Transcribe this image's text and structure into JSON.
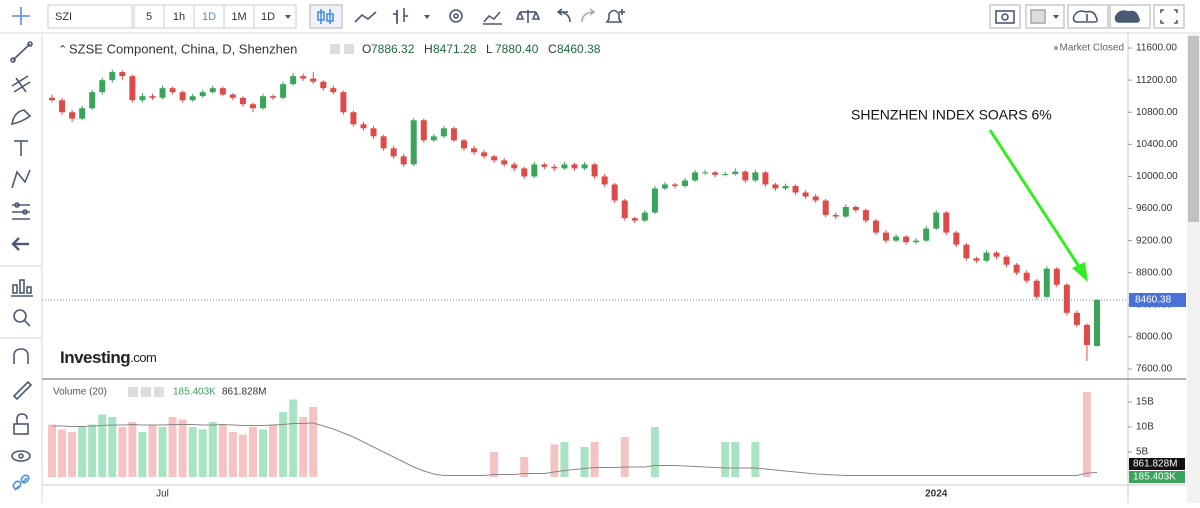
{
  "toolbar": {
    "symbol": "SZI",
    "intervals": [
      "5",
      "1h",
      "1D",
      "1M",
      "1D"
    ]
  },
  "chart_data": {
    "type": "candlestick",
    "title": "SZSE Component, China, D, Shenzhen",
    "ohlc_letters": [
      "O",
      "H",
      "L",
      "C"
    ],
    "header_values": [
      "7886.32",
      "8471.28",
      "7880.40",
      "8460.38"
    ],
    "status": "Market Closed",
    "logo": "Investing",
    "logo_suffix": ".com",
    "annotation": "SHENZHEN INDEX SOARS 6%",
    "up_color": "#3aa45c",
    "down_color": "#dd4b48",
    "ylim": [
      7488,
      11750
    ],
    "yticks": [
      {
        "value": 7600,
        "label": "7600.00"
      },
      {
        "value": 8000,
        "label": "8000.00"
      },
      {
        "value": 8400,
        "label": "8400.00"
      },
      {
        "value": 8800,
        "label": "8800.00"
      },
      {
        "value": 9200,
        "label": "9200.00"
      },
      {
        "value": 9600,
        "label": "9600.00"
      },
      {
        "value": 10000,
        "label": "10000.00"
      },
      {
        "value": 10400,
        "label": "10400.00"
      },
      {
        "value": 10800,
        "label": "10800.00"
      },
      {
        "value": 11200,
        "label": "11200.00"
      },
      {
        "value": 11600,
        "label": "11600.00"
      }
    ],
    "categories": [
      null,
      null,
      null,
      null,
      null,
      null,
      null,
      null,
      null,
      null,
      null,
      "Jul",
      null,
      null,
      null,
      null,
      null,
      null,
      null,
      null,
      null,
      null,
      null,
      null,
      null,
      null,
      null,
      null,
      null,
      null,
      null,
      null,
      null,
      null,
      null,
      null,
      null,
      null,
      null,
      null,
      null,
      null,
      null,
      null,
      null,
      null,
      null,
      null,
      null,
      null,
      null,
      null,
      null,
      null,
      null,
      null,
      null,
      null,
      null,
      null,
      null,
      null,
      null,
      null,
      null,
      null,
      null,
      null,
      null,
      null,
      null,
      null,
      null,
      null,
      null,
      null,
      null,
      null,
      null,
      null,
      null,
      null,
      null,
      null,
      null,
      null,
      null,
      null,
      "2024",
      null,
      null,
      null,
      null,
      null,
      null,
      null,
      null,
      null,
      null,
      null,
      null,
      null,
      null,
      null,
      null
    ],
    "candles": [
      [
        10980,
        11020,
        10920,
        10950
      ],
      [
        10950,
        10980,
        10770,
        10800
      ],
      [
        10800,
        10830,
        10680,
        10720
      ],
      [
        10720,
        10880,
        10700,
        10850
      ],
      [
        10850,
        11080,
        10830,
        11050
      ],
      [
        11050,
        11230,
        11020,
        11200
      ],
      [
        11200,
        11330,
        11170,
        11300
      ],
      [
        11300,
        11320,
        11200,
        11250
      ],
      [
        11250,
        11270,
        10920,
        10950
      ],
      [
        10950,
        11040,
        10920,
        11000
      ],
      [
        11000,
        11030,
        10950,
        10980
      ],
      [
        10980,
        11130,
        10960,
        11100
      ],
      [
        11100,
        11120,
        11020,
        11050
      ],
      [
        11050,
        11070,
        10920,
        10950
      ],
      [
        10950,
        11030,
        10930,
        11000
      ],
      [
        11000,
        11080,
        10980,
        11050
      ],
      [
        11050,
        11130,
        11030,
        11100
      ],
      [
        11100,
        11120,
        11000,
        11020
      ],
      [
        11020,
        11040,
        10950,
        10980
      ],
      [
        10980,
        11000,
        10870,
        10900
      ],
      [
        10900,
        10920,
        10800,
        10850
      ],
      [
        10850,
        11030,
        10830,
        11000
      ],
      [
        11000,
        11020,
        10950,
        10980
      ],
      [
        10980,
        11180,
        10960,
        11150
      ],
      [
        11150,
        11290,
        11130,
        11250
      ],
      [
        11250,
        11280,
        11190,
        11220
      ],
      [
        11220,
        11300,
        11150,
        11180
      ],
      [
        11180,
        11200,
        11070,
        11100
      ],
      [
        11100,
        11130,
        11020,
        11050
      ],
      [
        11050,
        11070,
        10770,
        10800
      ],
      [
        10800,
        10820,
        10620,
        10650
      ],
      [
        10650,
        10680,
        10570,
        10600
      ],
      [
        10600,
        10630,
        10470,
        10500
      ],
      [
        10500,
        10520,
        10320,
        10350
      ],
      [
        10350,
        10380,
        10220,
        10250
      ],
      [
        10250,
        10280,
        10120,
        10150
      ],
      [
        10150,
        10730,
        10130,
        10700
      ],
      [
        10700,
        10720,
        10420,
        10450
      ],
      [
        10450,
        10530,
        10430,
        10500
      ],
      [
        10500,
        10630,
        10480,
        10600
      ],
      [
        10600,
        10620,
        10430,
        10450
      ],
      [
        10450,
        10470,
        10320,
        10350
      ],
      [
        10350,
        10380,
        10270,
        10300
      ],
      [
        10300,
        10330,
        10220,
        10250
      ],
      [
        10250,
        10270,
        10170,
        10200
      ],
      [
        10200,
        10230,
        10120,
        10150
      ],
      [
        10150,
        10180,
        10070,
        10100
      ],
      [
        10100,
        10120,
        9970,
        10000
      ],
      [
        10000,
        10180,
        9980,
        10150
      ],
      [
        10150,
        10170,
        10090,
        10120
      ],
      [
        10120,
        10150,
        10070,
        10100
      ],
      [
        10100,
        10180,
        10080,
        10150
      ],
      [
        10150,
        10170,
        10070,
        10100
      ],
      [
        10100,
        10180,
        10080,
        10150
      ],
      [
        10150,
        10170,
        9970,
        10000
      ],
      [
        10000,
        10030,
        9870,
        9900
      ],
      [
        9900,
        9920,
        9670,
        9700
      ],
      [
        9700,
        9720,
        9450,
        9480
      ],
      [
        9480,
        9500,
        9420,
        9450
      ],
      [
        9450,
        9580,
        9430,
        9550
      ],
      [
        9550,
        9880,
        9530,
        9850
      ],
      [
        9850,
        9930,
        9830,
        9900
      ],
      [
        9900,
        9920,
        9850,
        9880
      ],
      [
        9880,
        9980,
        9860,
        9950
      ],
      [
        9950,
        10080,
        9930,
        10050
      ],
      [
        10050,
        10080,
        10020,
        10050
      ],
      [
        10050,
        10070,
        9990,
        10020
      ],
      [
        10020,
        10060,
        10000,
        10030
      ],
      [
        10030,
        10100,
        10010,
        10060
      ],
      [
        10060,
        10080,
        9920,
        9950
      ],
      [
        9950,
        10080,
        9930,
        10050
      ],
      [
        10050,
        10070,
        9870,
        9900
      ],
      [
        9900,
        9920,
        9820,
        9850
      ],
      [
        9850,
        9910,
        9830,
        9880
      ],
      [
        9880,
        9900,
        9770,
        9800
      ],
      [
        9800,
        9830,
        9720,
        9750
      ],
      [
        9750,
        9780,
        9670,
        9700
      ],
      [
        9700,
        9720,
        9490,
        9520
      ],
      [
        9520,
        9550,
        9470,
        9500
      ],
      [
        9500,
        9650,
        9480,
        9620
      ],
      [
        9620,
        9640,
        9550,
        9580
      ],
      [
        9580,
        9600,
        9420,
        9450
      ],
      [
        9450,
        9470,
        9270,
        9300
      ],
      [
        9300,
        9330,
        9170,
        9200
      ],
      [
        9200,
        9280,
        9180,
        9250
      ],
      [
        9250,
        9270,
        9150,
        9180
      ],
      [
        9180,
        9230,
        9160,
        9200
      ],
      [
        9200,
        9380,
        9180,
        9350
      ],
      [
        9350,
        9580,
        9330,
        9550
      ],
      [
        9550,
        9570,
        9270,
        9300
      ],
      [
        9300,
        9320,
        9120,
        9150
      ],
      [
        9150,
        9170,
        8950,
        8980
      ],
      [
        8980,
        9000,
        8920,
        8950
      ],
      [
        8950,
        9080,
        8930,
        9050
      ],
      [
        9050,
        9070,
        8970,
        9000
      ],
      [
        9000,
        9020,
        8870,
        8900
      ],
      [
        8900,
        8920,
        8770,
        8800
      ],
      [
        8800,
        8830,
        8670,
        8700
      ],
      [
        8700,
        8720,
        8470,
        8500
      ],
      [
        8500,
        8880,
        8480,
        8850
      ],
      [
        8850,
        8870,
        8620,
        8650
      ],
      [
        8650,
        8670,
        8270,
        8300
      ],
      [
        8300,
        8330,
        8120,
        8150
      ],
      [
        8150,
        8170,
        7700,
        7900
      ],
      [
        7886.32,
        8471.28,
        7880.4,
        8460.38
      ]
    ],
    "volume": {
      "title": "Volume (20)",
      "last_label": "185.403K",
      "ma_label": "861.828M",
      "ylim": [
        -1.4,
        18.6
      ],
      "yticks": [
        {
          "value": 5,
          "label": "5B"
        },
        {
          "value": 10,
          "label": "10B"
        },
        {
          "value": 15,
          "label": "15B"
        }
      ],
      "values": [
        10.5,
        9.5,
        9,
        10,
        10.5,
        12.5,
        12,
        10,
        11,
        9,
        10.5,
        10,
        12,
        11.5,
        10,
        9.5,
        11,
        10.5,
        9,
        8.5,
        10,
        9.5,
        10.5,
        13,
        15.5,
        12,
        14,
        null,
        null,
        null,
        null,
        null,
        null,
        null,
        null,
        null,
        null,
        null,
        null,
        null,
        null,
        null,
        null,
        null,
        5,
        null,
        null,
        4,
        null,
        null,
        6.5,
        7,
        null,
        6,
        7,
        null,
        null,
        8,
        null,
        null,
        10,
        null,
        null,
        null,
        null,
        null,
        null,
        7,
        7,
        null,
        7,
        null,
        null,
        null,
        null,
        null,
        null,
        null,
        null,
        null,
        null,
        null,
        null,
        null,
        null,
        null,
        null,
        null,
        null,
        null,
        null,
        null,
        null,
        null,
        null,
        null,
        null,
        null,
        null,
        null,
        null,
        null,
        null,
        17,
        null
      ],
      "ma_color": "#888888",
      "ma": [
        10.2,
        10.2,
        10.1,
        10.1,
        10.2,
        10.3,
        10.4,
        10.4,
        10.5,
        10.4,
        10.4,
        10.4,
        10.5,
        10.5,
        10.5,
        10.4,
        10.4,
        10.5,
        10.4,
        10.3,
        10.3,
        10.3,
        10.4,
        10.5,
        10.7,
        10.7,
        10.8,
        10.2,
        9.6,
        8.8,
        8,
        7,
        6,
        5,
        4,
        3,
        2,
        1.2,
        0.6,
        0.3,
        0.3,
        0.3,
        0.3,
        0.3,
        0.5,
        0.5,
        0.5,
        0.7,
        0.7,
        0.7,
        1,
        1.3,
        1.5,
        1.7,
        1.9,
        1.9,
        1.9,
        2,
        2,
        2,
        2.3,
        2.3,
        2.3,
        2.2,
        2.1,
        2,
        1.9,
        1.8,
        1.8,
        1.8,
        1.8,
        1.6,
        1.4,
        1.2,
        1,
        0.8,
        0.6,
        0.5,
        0.4,
        0.3,
        0.3,
        0.3,
        0.3,
        0.3,
        0.3,
        0.3,
        0.3,
        0.3,
        0.3,
        0.3,
        0.3,
        0.3,
        0.3,
        0.3,
        0.3,
        0.3,
        0.3,
        0.3,
        0.3,
        0.3,
        0.3,
        0.3,
        0.3,
        0.8,
        0.9
      ]
    }
  }
}
